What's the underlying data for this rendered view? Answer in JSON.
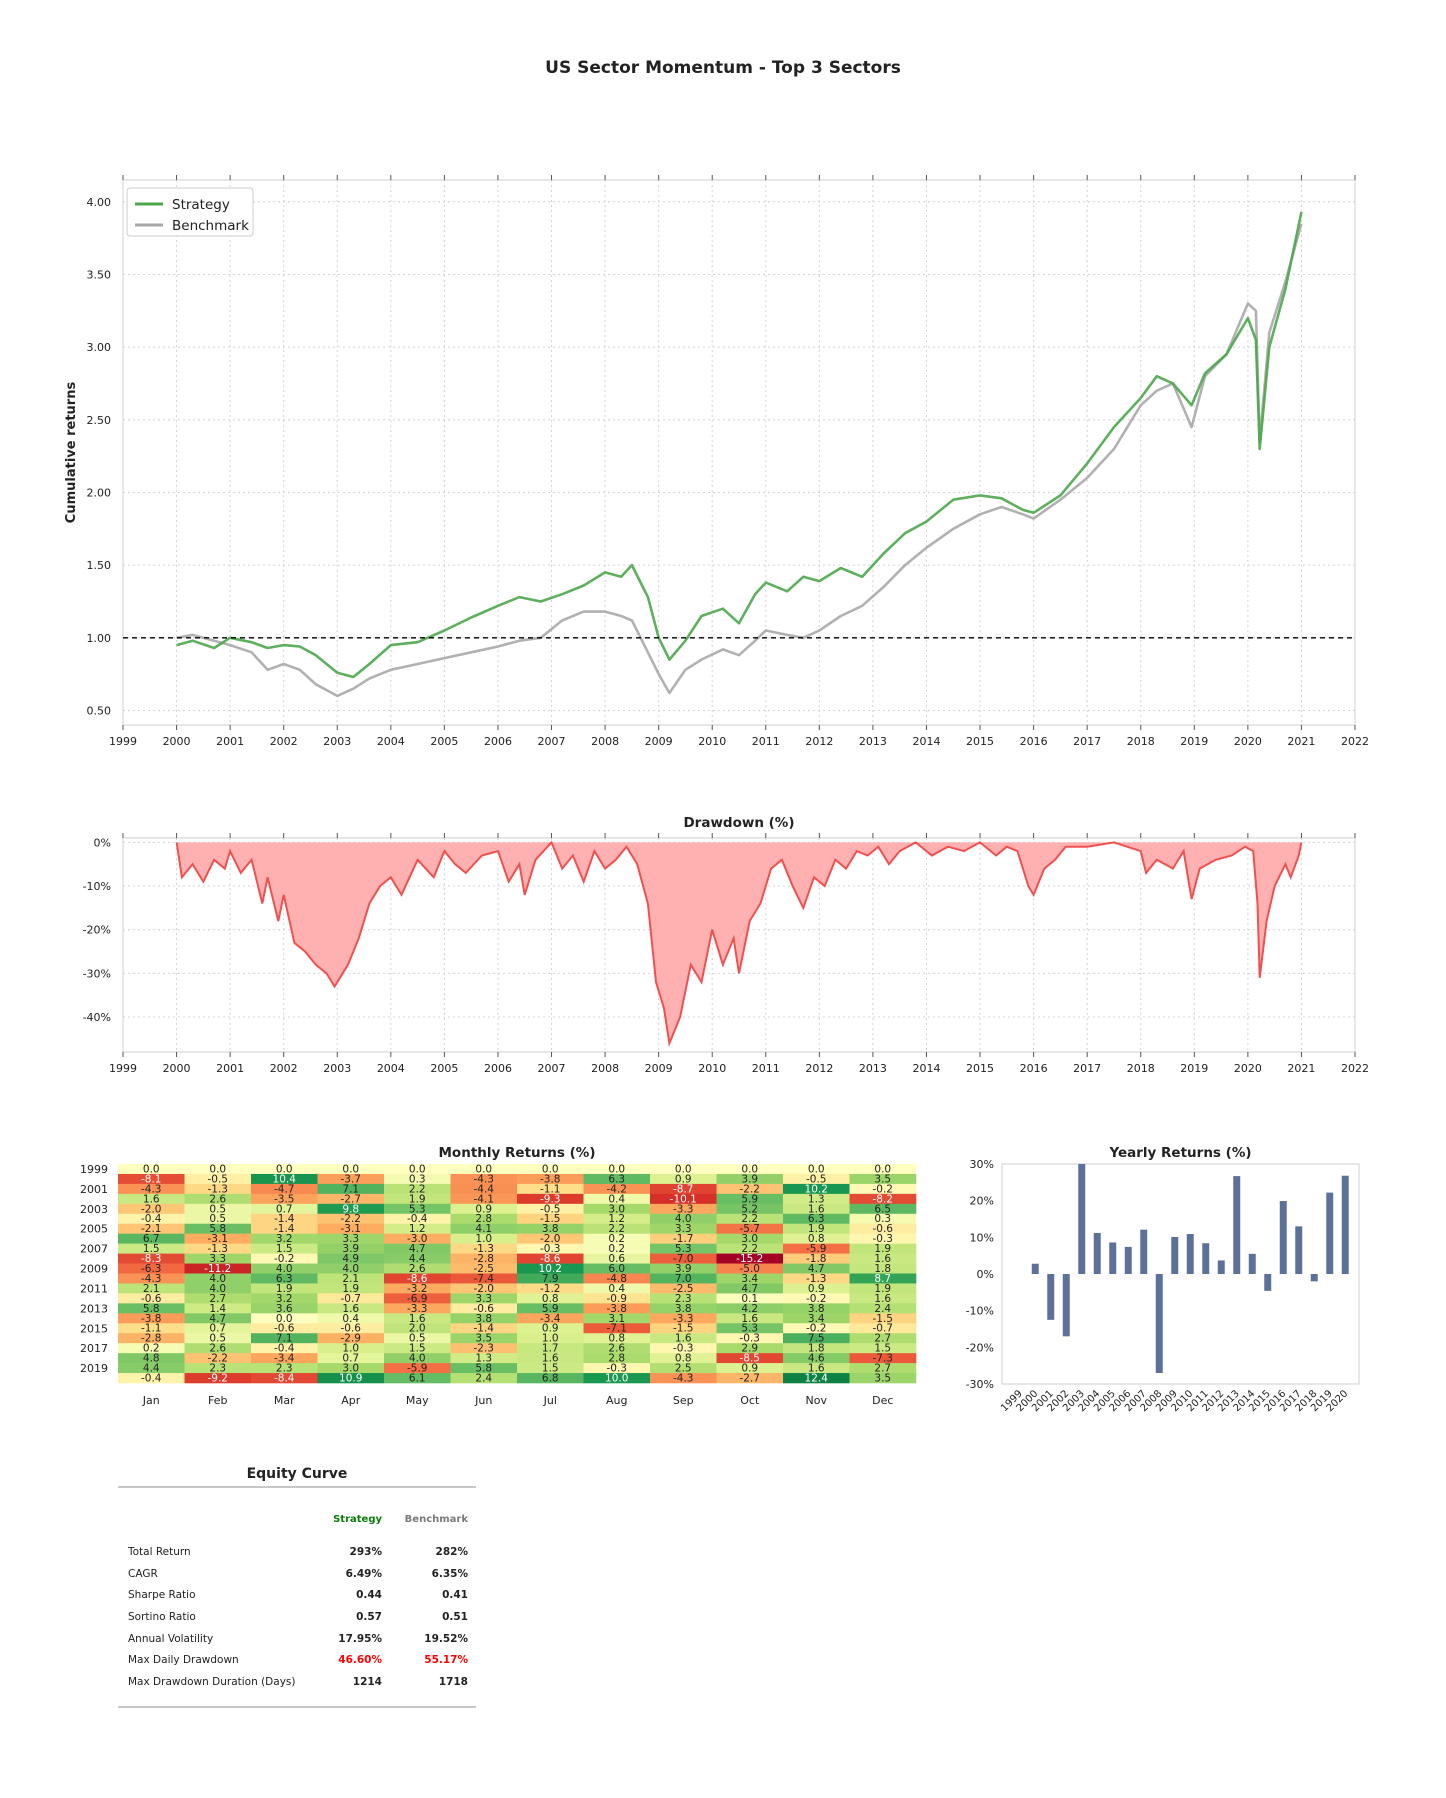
{
  "title": "US Sector Momentum - Top 3 Sectors",
  "colors": {
    "strategy": "#4ca64c",
    "benchmark": "#a8a8a8",
    "drawdown_fill": "#ffb0b0",
    "drawdown_line": "#f05050",
    "yearly_bar": "#5b7199",
    "negative": "#ff0000"
  },
  "chart_data": [
    {
      "type": "line",
      "title": "",
      "ylabel": "Cumulative returns",
      "xlabel": "",
      "ylim": [
        0.4,
        4.15
      ],
      "xlim": [
        1999,
        2022
      ],
      "x_ticks": [
        "1999",
        "2000",
        "2001",
        "2002",
        "2003",
        "2004",
        "2005",
        "2006",
        "2007",
        "2008",
        "2009",
        "2010",
        "2011",
        "2012",
        "2013",
        "2014",
        "2015",
        "2016",
        "2017",
        "2018",
        "2019",
        "2020",
        "2021",
        "2022"
      ],
      "y_ticks": [
        "0.50",
        "1.00",
        "1.50",
        "2.00",
        "2.50",
        "3.00",
        "3.50",
        "4.00"
      ],
      "y_tick_values": [
        0.5,
        1.0,
        1.5,
        2.0,
        2.5,
        3.0,
        3.5,
        4.0
      ],
      "baseline": 1.0,
      "grid": true,
      "legend": "top-left",
      "series": [
        {
          "name": "Strategy",
          "x": [
            2000,
            2000.3,
            2000.7,
            2001.0,
            2001.4,
            2001.7,
            2002.0,
            2002.3,
            2002.6,
            2003.0,
            2003.3,
            2003.6,
            2004.0,
            2004.5,
            2005.0,
            2005.5,
            2006.0,
            2006.4,
            2006.8,
            2007.2,
            2007.6,
            2008.0,
            2008.3,
            2008.5,
            2008.8,
            2009.0,
            2009.2,
            2009.5,
            2009.8,
            2010.2,
            2010.5,
            2010.8,
            2011.0,
            2011.4,
            2011.7,
            2012.0,
            2012.4,
            2012.8,
            2013.2,
            2013.6,
            2014.0,
            2014.5,
            2015.0,
            2015.4,
            2015.8,
            2016.0,
            2016.5,
            2017.0,
            2017.5,
            2018.0,
            2018.3,
            2018.6,
            2018.95,
            2019.2,
            2019.6,
            2020.0,
            2020.15,
            2020.22,
            2020.4,
            2020.7,
            2021.0
          ],
          "values": [
            0.95,
            0.98,
            0.93,
            1.0,
            0.97,
            0.93,
            0.95,
            0.94,
            0.88,
            0.76,
            0.73,
            0.82,
            0.95,
            0.97,
            1.05,
            1.14,
            1.22,
            1.28,
            1.25,
            1.3,
            1.36,
            1.45,
            1.42,
            1.5,
            1.28,
            1.0,
            0.85,
            0.98,
            1.15,
            1.2,
            1.1,
            1.3,
            1.38,
            1.32,
            1.42,
            1.39,
            1.48,
            1.42,
            1.58,
            1.72,
            1.8,
            1.95,
            1.98,
            1.96,
            1.88,
            1.86,
            1.98,
            2.2,
            2.45,
            2.65,
            2.8,
            2.75,
            2.6,
            2.82,
            2.95,
            3.2,
            3.05,
            2.3,
            3.0,
            3.4,
            3.93
          ]
        },
        {
          "name": "Benchmark",
          "x": [
            2000,
            2000.3,
            2000.7,
            2001.0,
            2001.4,
            2001.7,
            2002.0,
            2002.3,
            2002.6,
            2003.0,
            2003.3,
            2003.6,
            2004.0,
            2004.5,
            2005.0,
            2005.5,
            2006.0,
            2006.4,
            2006.8,
            2007.2,
            2007.6,
            2008.0,
            2008.3,
            2008.5,
            2008.8,
            2009.0,
            2009.2,
            2009.5,
            2009.8,
            2010.2,
            2010.5,
            2010.8,
            2011.0,
            2011.4,
            2011.7,
            2012.0,
            2012.4,
            2012.8,
            2013.2,
            2013.6,
            2014.0,
            2014.5,
            2015.0,
            2015.4,
            2015.8,
            2016.0,
            2016.5,
            2017.0,
            2017.5,
            2018.0,
            2018.3,
            2018.6,
            2018.95,
            2019.2,
            2019.6,
            2020.0,
            2020.15,
            2020.22,
            2020.4,
            2020.7,
            2021.0
          ],
          "values": [
            1.0,
            1.02,
            0.98,
            0.95,
            0.9,
            0.78,
            0.82,
            0.78,
            0.68,
            0.6,
            0.65,
            0.72,
            0.78,
            0.82,
            0.86,
            0.9,
            0.94,
            0.98,
            1.0,
            1.12,
            1.18,
            1.18,
            1.15,
            1.12,
            0.9,
            0.75,
            0.62,
            0.78,
            0.85,
            0.92,
            0.88,
            0.98,
            1.05,
            1.02,
            1.0,
            1.05,
            1.15,
            1.22,
            1.35,
            1.5,
            1.62,
            1.75,
            1.85,
            1.9,
            1.85,
            1.82,
            1.95,
            2.1,
            2.3,
            2.6,
            2.7,
            2.75,
            2.45,
            2.8,
            2.95,
            3.3,
            3.25,
            2.35,
            3.1,
            3.45,
            3.85
          ]
        }
      ]
    },
    {
      "type": "area",
      "title": "Drawdown (%)",
      "ylim": [
        -48,
        1
      ],
      "xlim": [
        1999,
        2022
      ],
      "x_ticks": [
        "1999",
        "2000",
        "2001",
        "2002",
        "2003",
        "2004",
        "2005",
        "2006",
        "2007",
        "2008",
        "2009",
        "2010",
        "2011",
        "2012",
        "2013",
        "2014",
        "2015",
        "2016",
        "2017",
        "2018",
        "2019",
        "2020",
        "2021",
        "2022"
      ],
      "y_ticks": [
        "0%",
        "-10%",
        "-20%",
        "-30%",
        "-40%"
      ],
      "y_tick_values": [
        0,
        -10,
        -20,
        -30,
        -40
      ],
      "grid": true,
      "series": [
        {
          "name": "Drawdown",
          "x": [
            2000,
            2000.1,
            2000.3,
            2000.5,
            2000.7,
            2000.9,
            2001.0,
            2001.2,
            2001.4,
            2001.6,
            2001.7,
            2001.9,
            2002.0,
            2002.2,
            2002.4,
            2002.6,
            2002.8,
            2002.95,
            2003.05,
            2003.2,
            2003.4,
            2003.6,
            2003.8,
            2004.0,
            2004.2,
            2004.5,
            2004.8,
            2005.0,
            2005.2,
            2005.4,
            2005.7,
            2006.0,
            2006.2,
            2006.4,
            2006.5,
            2006.7,
            2007.0,
            2007.2,
            2007.4,
            2007.6,
            2007.8,
            2008.0,
            2008.2,
            2008.4,
            2008.6,
            2008.8,
            2008.95,
            2009.1,
            2009.2,
            2009.4,
            2009.6,
            2009.8,
            2010.0,
            2010.2,
            2010.4,
            2010.5,
            2010.7,
            2010.9,
            2011.1,
            2011.3,
            2011.5,
            2011.7,
            2011.9,
            2012.1,
            2012.3,
            2012.5,
            2012.7,
            2012.9,
            2013.1,
            2013.3,
            2013.5,
            2013.8,
            2014.1,
            2014.4,
            2014.7,
            2015.0,
            2015.3,
            2015.5,
            2015.7,
            2015.9,
            2016.0,
            2016.2,
            2016.4,
            2016.6,
            2017.0,
            2017.5,
            2018.0,
            2018.1,
            2018.3,
            2018.6,
            2018.8,
            2018.95,
            2019.1,
            2019.4,
            2019.7,
            2019.95,
            2020.1,
            2020.18,
            2020.22,
            2020.35,
            2020.5,
            2020.7,
            2020.8,
            2020.95,
            2021.0
          ],
          "values": [
            0,
            -8,
            -5,
            -9,
            -4,
            -6,
            -2,
            -7,
            -4,
            -14,
            -8,
            -18,
            -12,
            -23,
            -25,
            -28,
            -30,
            -33,
            -31,
            -28,
            -22,
            -14,
            -10,
            -8,
            -12,
            -4,
            -8,
            -2,
            -5,
            -7,
            -3,
            -2,
            -9,
            -5,
            -12,
            -4,
            0,
            -6,
            -3,
            -9,
            -2,
            -6,
            -4,
            -1,
            -5,
            -14,
            -32,
            -38,
            -46,
            -40,
            -28,
            -32,
            -20,
            -28,
            -22,
            -30,
            -18,
            -14,
            -6,
            -4,
            -10,
            -15,
            -8,
            -10,
            -4,
            -6,
            -2,
            -3,
            -1,
            -5,
            -2,
            0,
            -3,
            -1,
            -2,
            0,
            -3,
            -1,
            -2,
            -10,
            -12,
            -6,
            -4,
            -1,
            -1,
            0,
            -2,
            -7,
            -4,
            -6,
            -2,
            -13,
            -6,
            -4,
            -3,
            -1,
            -2,
            -14,
            -31,
            -18,
            -10,
            -5,
            -8,
            -3,
            0
          ]
        }
      ]
    },
    {
      "type": "heatmap",
      "title": "Monthly Returns (%)",
      "x_categories": [
        "Jan",
        "Feb",
        "Mar",
        "Apr",
        "May",
        "Jun",
        "Jul",
        "Aug",
        "Sep",
        "Oct",
        "Nov",
        "Dec"
      ],
      "y_categories": [
        "1999",
        "2000",
        "2001",
        "2002",
        "2003",
        "2004",
        "2005",
        "2006",
        "2007",
        "2008",
        "2009",
        "2010",
        "2011",
        "2012",
        "2013",
        "2014",
        "2015",
        "2016",
        "2017",
        "2018",
        "2019",
        "2020"
      ],
      "y_tick_labels": [
        "1999",
        "2001",
        "2003",
        "2005",
        "2007",
        "2009",
        "2011",
        "2013",
        "2015",
        "2017",
        "2019"
      ],
      "values": [
        [
          0.0,
          0.0,
          0.0,
          0.0,
          0.0,
          0.0,
          0.0,
          0.0,
          0.0,
          0.0,
          0.0,
          0.0
        ],
        [
          -8.1,
          -0.5,
          10.4,
          -3.7,
          0.3,
          -4.3,
          -3.8,
          6.3,
          0.9,
          3.9,
          -0.5,
          3.5
        ],
        [
          -4.3,
          -1.3,
          -4.7,
          7.1,
          2.2,
          -4.4,
          -1.1,
          -4.2,
          -8.7,
          -2.2,
          10.2,
          -0.2
        ],
        [
          1.6,
          2.6,
          -3.5,
          -2.7,
          1.9,
          -4.1,
          -9.3,
          0.4,
          -10.1,
          5.9,
          1.3,
          -8.2
        ],
        [
          -2.0,
          0.5,
          0.7,
          9.8,
          5.3,
          0.9,
          -0.5,
          3.0,
          -3.3,
          5.2,
          1.6,
          6.5
        ],
        [
          -0.4,
          0.5,
          -1.4,
          -2.2,
          -0.4,
          2.8,
          -1.5,
          1.2,
          4.0,
          2.2,
          6.3,
          0.3
        ],
        [
          -2.1,
          5.8,
          -1.4,
          -3.1,
          1.2,
          4.1,
          3.8,
          2.2,
          3.3,
          -5.7,
          1.9,
          -0.6
        ],
        [
          6.7,
          -3.1,
          3.2,
          3.3,
          -3.0,
          1.0,
          -2.0,
          0.2,
          -1.7,
          3.0,
          0.8,
          -0.3
        ],
        [
          1.5,
          -1.3,
          1.5,
          3.9,
          4.7,
          -1.3,
          -0.3,
          0.2,
          5.3,
          2.2,
          -5.9,
          1.9
        ],
        [
          -8.3,
          3.3,
          -0.2,
          4.9,
          4.4,
          -2.8,
          -8.6,
          0.6,
          -7.0,
          -15.2,
          -1.8,
          1.6
        ],
        [
          -6.3,
          -11.2,
          4.0,
          4.0,
          2.6,
          -2.5,
          10.2,
          6.0,
          3.9,
          -5.0,
          4.7,
          1.8
        ],
        [
          -4.3,
          4.0,
          6.3,
          2.1,
          -8.6,
          -7.4,
          7.9,
          -4.8,
          7.0,
          3.4,
          -1.3,
          8.7
        ],
        [
          2.1,
          4.0,
          1.9,
          1.9,
          -3.2,
          -2.0,
          -1.2,
          0.4,
          -2.5,
          4.7,
          0.9,
          1.9
        ],
        [
          -0.6,
          2.7,
          3.2,
          -0.7,
          -6.9,
          3.3,
          0.8,
          -0.9,
          2.3,
          0.1,
          -0.2,
          1.6
        ],
        [
          5.8,
          1.4,
          3.6,
          1.6,
          -3.3,
          -0.6,
          5.9,
          -3.8,
          3.8,
          4.2,
          3.8,
          2.4
        ],
        [
          -3.8,
          4.7,
          0.0,
          0.4,
          1.6,
          3.8,
          -3.4,
          3.1,
          -3.3,
          1.6,
          3.4,
          -1.5
        ],
        [
          -1.1,
          0.7,
          -0.6,
          -0.6,
          2.0,
          -1.4,
          0.9,
          -7.1,
          -1.5,
          5.3,
          -0.2,
          -0.7
        ],
        [
          -2.8,
          0.5,
          7.1,
          -2.9,
          0.5,
          3.5,
          1.0,
          0.8,
          1.6,
          -0.3,
          7.5,
          2.7
        ],
        [
          0.2,
          2.6,
          -0.4,
          1.0,
          1.5,
          -2.3,
          1.7,
          2.6,
          -0.3,
          2.9,
          1.8,
          1.5
        ],
        [
          4.8,
          -2.2,
          -3.4,
          0.7,
          4.0,
          1.3,
          1.6,
          2.8,
          0.8,
          -8.5,
          4.6,
          -7.3
        ],
        [
          4.4,
          2.3,
          2.3,
          3.0,
          -5.9,
          5.8,
          1.5,
          -0.3,
          2.5,
          0.9,
          1.6,
          2.7
        ],
        [
          -0.4,
          -9.2,
          -8.4,
          10.9,
          6.1,
          2.4,
          6.8,
          10.0,
          -4.3,
          -2.7,
          12.4,
          3.5
        ]
      ]
    },
    {
      "type": "bar",
      "title": "Yearly Returns (%)",
      "categories": [
        "1999",
        "2000",
        "2001",
        "2002",
        "2003",
        "2004",
        "2005",
        "2006",
        "2007",
        "2008",
        "2009",
        "2010",
        "2011",
        "2012",
        "2013",
        "2014",
        "2015",
        "2016",
        "2017",
        "2018",
        "2019",
        "2020"
      ],
      "values": [
        0,
        2.8,
        -12.5,
        -17.0,
        30.0,
        11.2,
        8.6,
        7.4,
        12.1,
        -27.0,
        10.1,
        10.9,
        8.4,
        3.7,
        26.7,
        5.5,
        -4.6,
        19.9,
        13.0,
        -2.0,
        22.2,
        26.8
      ],
      "y_ticks": [
        "30%",
        "20%",
        "10%",
        "0%",
        "-10%",
        "-20%",
        "-30%"
      ],
      "y_tick_values": [
        30,
        20,
        10,
        0,
        -10,
        -20,
        -30
      ],
      "ylim": [
        -30,
        30
      ]
    }
  ],
  "stats": {
    "title": "Equity Curve",
    "header": {
      "strategy": "Strategy",
      "benchmark": "Benchmark"
    },
    "rows": [
      {
        "label": "Total Return",
        "strategy": "293%",
        "benchmark": "282%"
      },
      {
        "label": "CAGR",
        "strategy": "6.49%",
        "benchmark": "6.35%"
      },
      {
        "label": "Sharpe Ratio",
        "strategy": "0.44",
        "benchmark": "0.41"
      },
      {
        "label": "Sortino Ratio",
        "strategy": "0.57",
        "benchmark": "0.51"
      },
      {
        "label": "Annual Volatility",
        "strategy": "17.95%",
        "benchmark": "19.52%"
      },
      {
        "label": "Max Daily Drawdown",
        "strategy": "46.60%",
        "benchmark": "55.17%",
        "highlight": true
      },
      {
        "label": "Max Drawdown Duration (Days)",
        "strategy": "1214",
        "benchmark": "1718"
      }
    ]
  }
}
